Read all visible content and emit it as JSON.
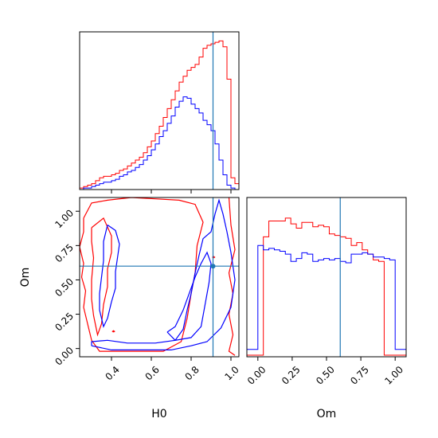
{
  "chart_data": {
    "type": "corner",
    "parameters": [
      "H0",
      "Om"
    ],
    "truth": {
      "H0": 0.91,
      "Om": 0.6
    },
    "truth_color": "#1f77b4",
    "series": [
      {
        "color": "#ff0000"
      },
      {
        "color": "#0000ff"
      }
    ],
    "hist_H0": {
      "bin_edges": [
        0.24,
        0.26,
        0.28,
        0.3,
        0.32,
        0.34,
        0.36,
        0.38,
        0.4,
        0.42,
        0.44,
        0.46,
        0.48,
        0.5,
        0.52,
        0.54,
        0.56,
        0.58,
        0.6,
        0.62,
        0.64,
        0.66,
        0.68,
        0.7,
        0.72,
        0.74,
        0.76,
        0.78,
        0.8,
        0.82,
        0.84,
        0.86,
        0.88,
        0.9,
        0.92,
        0.94,
        0.96,
        0.98,
        1.0,
        1.02,
        1.04
      ],
      "counts": [
        [
          1,
          2,
          3,
          4,
          6,
          8,
          9,
          9,
          10,
          11,
          13,
          14,
          16,
          18,
          20,
          22,
          25,
          29,
          33,
          38,
          43,
          49,
          55,
          61,
          67,
          73,
          77,
          81,
          83,
          85,
          90,
          96,
          98,
          99,
          100,
          101,
          97,
          75,
          8,
          4
        ],
        [
          0,
          1,
          1,
          2,
          3,
          4,
          5,
          5,
          6,
          7,
          9,
          10,
          12,
          13,
          15,
          17,
          20,
          23,
          27,
          31,
          36,
          40,
          45,
          50,
          56,
          60,
          63,
          62,
          58,
          55,
          52,
          47,
          44,
          40,
          31,
          20,
          10,
          3,
          1,
          0
        ]
      ]
    },
    "hist_Om": {
      "bin_edges": [
        -0.08,
        -0.04,
        0.0,
        0.04,
        0.08,
        0.12,
        0.16,
        0.2,
        0.24,
        0.28,
        0.32,
        0.36,
        0.4,
        0.44,
        0.48,
        0.52,
        0.56,
        0.6,
        0.64,
        0.68,
        0.72,
        0.76,
        0.8,
        0.84,
        0.88,
        0.92,
        0.96,
        1.0,
        1.04,
        1.08
      ],
      "counts": [
        [
          0,
          0,
          0,
          82,
          93,
          93,
          93,
          95,
          91,
          88,
          92,
          92,
          89,
          90,
          89,
          84,
          83,
          82,
          81,
          76,
          78,
          73,
          70,
          66,
          65,
          0,
          0,
          0,
          0
        ],
        [
          4,
          4,
          76,
          73,
          74,
          73,
          72,
          70,
          65,
          67,
          71,
          70,
          65,
          66,
          67,
          66,
          67,
          65,
          64,
          70,
          70,
          71,
          70,
          68,
          68,
          67,
          66,
          4,
          4
        ]
      ]
    },
    "x_ticks_H0": [
      "0.4",
      "0.6",
      "0.8",
      "1.0"
    ],
    "y_ticks_Om": [
      "0.00",
      "0.25",
      "0.50",
      "0.75",
      "1.00"
    ],
    "x_ticks_Om": [
      "0.00",
      "0.25",
      "0.50",
      "0.75",
      "1.00"
    ],
    "xlim_H0": [
      0.24,
      1.04
    ],
    "ylim_Om": [
      -0.06,
      1.1
    ],
    "xlim_Om": [
      -0.08,
      1.08
    ],
    "contours": [
      {
        "series": 0,
        "paths": [
          [
            [
              0.26,
              0.95
            ],
            [
              0.3,
              1.06
            ],
            [
              0.38,
              1.08
            ],
            [
              0.5,
              1.1
            ],
            [
              0.62,
              1.09
            ],
            [
              0.74,
              1.08
            ],
            [
              0.82,
              1.05
            ],
            [
              0.86,
              0.92
            ],
            [
              0.83,
              0.75
            ],
            [
              0.82,
              0.55
            ],
            [
              0.8,
              0.4
            ],
            [
              0.78,
              0.22
            ],
            [
              0.75,
              0.05
            ],
            [
              0.66,
              -0.02
            ],
            [
              0.55,
              -0.02
            ],
            [
              0.42,
              -0.02
            ],
            [
              0.34,
              -0.02
            ],
            [
              0.3,
              0.06
            ],
            [
              0.28,
              0.18
            ],
            [
              0.26,
              0.3
            ],
            [
              0.27,
              0.42
            ],
            [
              0.25,
              0.52
            ],
            [
              0.26,
              0.62
            ],
            [
              0.24,
              0.74
            ],
            [
              0.26,
              0.85
            ],
            [
              0.26,
              0.95
            ]
          ],
          [
            [
              0.3,
              0.88
            ],
            [
              0.36,
              0.95
            ],
            [
              0.4,
              0.82
            ],
            [
              0.4,
              0.7
            ],
            [
              0.38,
              0.58
            ],
            [
              0.38,
              0.45
            ],
            [
              0.36,
              0.32
            ],
            [
              0.35,
              0.18
            ],
            [
              0.33,
              0.1
            ],
            [
              0.31,
              0.24
            ],
            [
              0.3,
              0.36
            ],
            [
              0.3,
              0.5
            ],
            [
              0.31,
              0.66
            ],
            [
              0.3,
              0.78
            ],
            [
              0.3,
              0.88
            ]
          ],
          [
            [
              0.99,
              1.1
            ],
            [
              1.0,
              0.9
            ],
            [
              1.02,
              0.72
            ],
            [
              0.99,
              0.55
            ],
            [
              1.01,
              0.4
            ],
            [
              0.99,
              0.25
            ],
            [
              1.01,
              0.1
            ],
            [
              0.99,
              -0.02
            ],
            [
              1.02,
              -0.05
            ]
          ],
          [
            [
              0.41,
              0.12
            ],
            [
              0.415,
              0.125
            ],
            [
              0.41,
              0.13
            ],
            [
              0.405,
              0.125
            ],
            [
              0.41,
              0.12
            ]
          ],
          [
            [
              0.913,
              0.66
            ],
            [
              0.918,
              0.665
            ],
            [
              0.913,
              0.67
            ],
            [
              0.908,
              0.665
            ],
            [
              0.913,
              0.66
            ]
          ]
        ]
      },
      {
        "series": 1,
        "paths": [
          [
            [
              0.3,
              0.02
            ],
            [
              0.4,
              -0.01
            ],
            [
              0.55,
              -0.01
            ],
            [
              0.7,
              -0.01
            ],
            [
              0.8,
              0.02
            ],
            [
              0.88,
              0.05
            ],
            [
              0.95,
              0.15
            ],
            [
              1.0,
              0.3
            ],
            [
              1.02,
              0.5
            ],
            [
              1.0,
              0.7
            ],
            [
              0.98,
              0.85
            ],
            [
              0.96,
              0.98
            ],
            [
              0.94,
              1.08
            ],
            [
              0.92,
              0.98
            ],
            [
              0.9,
              0.85
            ],
            [
              0.86,
              0.8
            ],
            [
              0.84,
              0.68
            ],
            [
              0.82,
              0.55
            ],
            [
              0.8,
              0.4
            ],
            [
              0.78,
              0.28
            ],
            [
              0.76,
              0.14
            ],
            [
              0.72,
              0.06
            ],
            [
              0.62,
              0.04
            ],
            [
              0.48,
              0.04
            ],
            [
              0.38,
              0.06
            ],
            [
              0.3,
              0.05
            ],
            [
              0.3,
              0.02
            ]
          ],
          [
            [
              0.38,
              0.9
            ],
            [
              0.42,
              0.86
            ],
            [
              0.44,
              0.76
            ],
            [
              0.43,
              0.66
            ],
            [
              0.42,
              0.56
            ],
            [
              0.42,
              0.44
            ],
            [
              0.4,
              0.34
            ],
            [
              0.38,
              0.22
            ],
            [
              0.36,
              0.16
            ],
            [
              0.34,
              0.28
            ],
            [
              0.34,
              0.4
            ],
            [
              0.35,
              0.52
            ],
            [
              0.36,
              0.64
            ],
            [
              0.36,
              0.78
            ],
            [
              0.38,
              0.9
            ]
          ],
          [
            [
              0.68,
              0.12
            ],
            [
              0.72,
              0.16
            ],
            [
              0.76,
              0.28
            ],
            [
              0.79,
              0.4
            ],
            [
              0.82,
              0.52
            ],
            [
              0.85,
              0.62
            ],
            [
              0.88,
              0.7
            ],
            [
              0.9,
              0.62
            ],
            [
              0.89,
              0.48
            ],
            [
              0.87,
              0.32
            ],
            [
              0.85,
              0.16
            ],
            [
              0.8,
              0.08
            ],
            [
              0.72,
              0.06
            ],
            [
              0.68,
              0.12
            ]
          ]
        ]
      }
    ]
  },
  "axis_labels": {
    "x_left": "H0",
    "y_left": "Om",
    "x_right": "Om"
  }
}
